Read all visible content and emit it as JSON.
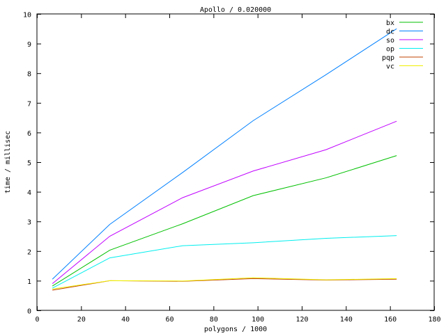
{
  "chart_data": {
    "type": "line",
    "title": "Apollo / 0.020000",
    "xlabel": "polygons / 1000",
    "ylabel": "time / millisec",
    "xlim": [
      0,
      180
    ],
    "ylim": [
      0,
      10
    ],
    "xticks": [
      0,
      20,
      40,
      60,
      80,
      100,
      120,
      140,
      160,
      180
    ],
    "yticks": [
      0,
      1,
      2,
      3,
      4,
      5,
      6,
      7,
      8,
      9,
      10
    ],
    "grid": false,
    "legend_placement": "top-right",
    "x": [
      7,
      33,
      66,
      98,
      131,
      163
    ],
    "series": [
      {
        "name": "bx",
        "color": "#00c000",
        "values": [
          0.82,
          2.03,
          2.92,
          3.87,
          4.47,
          5.22
        ]
      },
      {
        "name": "dc",
        "color": "#0080ff",
        "values": [
          1.05,
          2.9,
          4.65,
          6.4,
          7.95,
          9.5
        ]
      },
      {
        "name": "so",
        "color": "#c000ff",
        "values": [
          0.9,
          2.5,
          3.8,
          4.7,
          5.42,
          6.38
        ]
      },
      {
        "name": "op",
        "color": "#00eeee",
        "values": [
          0.75,
          1.77,
          2.18,
          2.28,
          2.43,
          2.52
        ]
      },
      {
        "name": "pqp",
        "color": "#c04000",
        "values": [
          0.68,
          1.0,
          0.98,
          1.07,
          1.02,
          1.05
        ]
      },
      {
        "name": "vc",
        "color": "#eeee00",
        "values": [
          0.72,
          1.0,
          0.99,
          1.1,
          1.03,
          1.07
        ]
      }
    ]
  }
}
